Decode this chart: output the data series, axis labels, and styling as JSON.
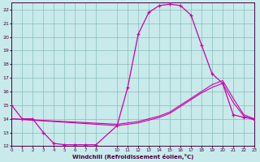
{
  "xlabel": "Windchill (Refroidissement éolien,°C)",
  "bg_color": "#c8eaea",
  "grid_color": "#88bbbb",
  "line_color": "#cc00aa",
  "xmin": 0,
  "xmax": 23,
  "ymin": 12,
  "ymax": 22.5,
  "yticks": [
    12,
    13,
    14,
    15,
    16,
    17,
    18,
    19,
    20,
    21,
    22
  ],
  "xticks": [
    0,
    1,
    2,
    3,
    4,
    5,
    6,
    7,
    8,
    10,
    11,
    12,
    13,
    14,
    15,
    16,
    17,
    18,
    19,
    20,
    21,
    22,
    23
  ],
  "xticklabels": [
    "0",
    "1",
    "2",
    "3",
    "4",
    "5",
    "6",
    "7",
    "8",
    "10",
    "11",
    "12",
    "13",
    "14",
    "15",
    "16",
    "17",
    "18",
    "19",
    "20",
    "21",
    "22",
    "23"
  ],
  "curve_x": [
    0,
    1,
    2,
    3,
    4,
    5,
    6,
    7,
    8,
    10,
    11,
    12,
    13,
    14,
    15,
    16,
    17,
    18,
    19,
    20,
    21,
    22,
    23
  ],
  "curve_y": [
    15,
    14,
    14,
    13,
    12.2,
    12.1,
    12.1,
    12.1,
    12.1,
    13.5,
    16.3,
    20.2,
    21.8,
    22.3,
    22.4,
    22.3,
    21.6,
    19.4,
    17.3,
    16.6,
    14.3,
    14.1,
    14.0
  ],
  "line2_x": [
    0,
    10,
    11,
    12,
    13,
    14,
    15,
    16,
    17,
    18,
    19,
    20,
    21,
    22,
    23
  ],
  "line2_y": [
    14.0,
    13.6,
    13.7,
    13.8,
    14.0,
    14.2,
    14.5,
    15.0,
    15.5,
    16.0,
    16.5,
    16.8,
    15.5,
    14.3,
    14.0
  ],
  "line3_x": [
    0,
    10,
    11,
    12,
    13,
    14,
    15,
    16,
    17,
    18,
    19,
    20,
    21,
    22,
    23
  ],
  "line3_y": [
    14.0,
    13.5,
    13.6,
    13.7,
    13.9,
    14.1,
    14.4,
    14.9,
    15.4,
    15.9,
    16.3,
    16.6,
    15.2,
    14.2,
    13.9
  ]
}
